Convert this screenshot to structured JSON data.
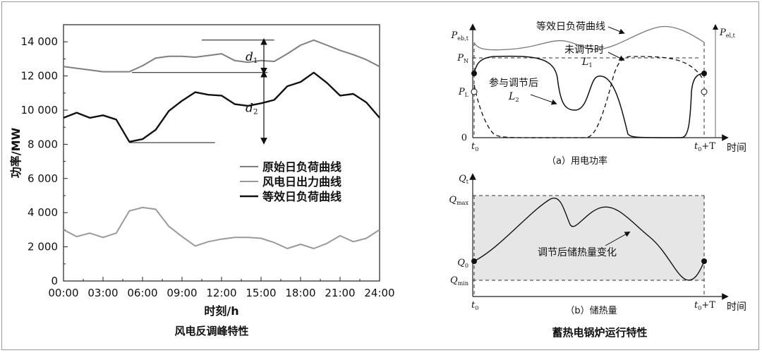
{
  "captions": {
    "left": "风电反调峰特性",
    "right": "蓄热电锅炉运行特性"
  },
  "chart_data": [
    {
      "type": "line",
      "title": "风电反调峰特性",
      "xlabel": "时刻/h",
      "ylabel": "功率/MW",
      "xlim": [
        0,
        24
      ],
      "ylim": [
        0,
        15000
      ],
      "x_ticks": [
        "00:00",
        "03:00",
        "06:00",
        "09:00",
        "12:00",
        "15:00",
        "18:00",
        "21:00",
        "24:00"
      ],
      "y_ticks": [
        "0",
        "2 000",
        "4 000",
        "6 000",
        "8 000",
        "10 000",
        "12 000",
        "14 000"
      ],
      "legend": {
        "position": "center-right",
        "entries": [
          "原始日负荷曲线",
          "风电日出力曲线",
          "等效日负荷曲线"
        ]
      },
      "series": [
        {
          "name": "原始日负荷曲线",
          "color": "#7f7f7f",
          "x": [
            0,
            1,
            2,
            3,
            4,
            5,
            6,
            7,
            8,
            9,
            10,
            11,
            12,
            13,
            14,
            15,
            16,
            17,
            18,
            19,
            20,
            21,
            22,
            23,
            24
          ],
          "y": [
            12550,
            12450,
            12350,
            12250,
            12250,
            12250,
            12600,
            13050,
            13150,
            13150,
            13100,
            13200,
            13300,
            12900,
            12800,
            12900,
            12850,
            13300,
            13800,
            14100,
            13800,
            13500,
            13250,
            12950,
            12550
          ]
        },
        {
          "name": "风电日出力曲线",
          "color": "#9a9a9a",
          "x": [
            0,
            1,
            2,
            3,
            4,
            5,
            6,
            7,
            8,
            9,
            10,
            11,
            12,
            13,
            14,
            15,
            16,
            17,
            18,
            19,
            20,
            21,
            22,
            23,
            24
          ],
          "y": [
            3000,
            2600,
            2800,
            2550,
            2800,
            4100,
            4300,
            4200,
            3200,
            2600,
            2050,
            2300,
            2450,
            2550,
            2550,
            2500,
            2250,
            1900,
            2150,
            1900,
            2200,
            2650,
            2300,
            2500,
            3000
          ]
        },
        {
          "name": "等效日负荷曲线",
          "color": "#111111",
          "x": [
            0,
            1,
            2,
            3,
            4,
            5,
            6,
            7,
            8,
            9,
            10,
            11,
            12,
            13,
            14,
            15,
            16,
            17,
            18,
            19,
            20,
            21,
            22,
            23,
            24
          ],
          "y": [
            9550,
            9850,
            9550,
            9700,
            9450,
            8150,
            8300,
            8850,
            9950,
            10550,
            11050,
            10900,
            10850,
            10350,
            10250,
            10400,
            10600,
            11400,
            11650,
            12200,
            11600,
            10850,
            10950,
            10450,
            9550
          ]
        }
      ],
      "annotations": [
        {
          "label": "d",
          "sub": "1",
          "from": 14100,
          "to": 12200
        },
        {
          "label": "d",
          "sub": "2",
          "from": 12200,
          "to": 8100
        }
      ]
    },
    {
      "type": "line",
      "subtitle": "（a）用电功率",
      "xlabel": "时间",
      "y_ticks": [
        {
          "main": "P",
          "sub": "eb,t"
        },
        {
          "main": "P",
          "sub": "N"
        },
        {
          "main": "P",
          "sub": "L"
        },
        {
          "main": "0",
          "sub": ""
        }
      ],
      "right_axis_label": {
        "main": "P",
        "sub": "el,t"
      },
      "x_ticks": [
        {
          "main": "t",
          "sub": "0",
          "suffix": ""
        },
        {
          "main": "t",
          "sub": "0",
          "suffix": "+T"
        }
      ],
      "annotations": [
        {
          "text": "等效日负荷曲线"
        },
        {
          "text": "未调节时",
          "main": "L",
          "sub": "1"
        },
        {
          "text": "参与调节后",
          "main": "L",
          "sub": "2"
        }
      ],
      "series_styles": [
        {
          "curve": "等效日负荷曲线",
          "color": "#777777",
          "dash": false
        },
        {
          "curve": "L1",
          "color": "#111111",
          "dash": true
        },
        {
          "curve": "L2",
          "color": "#111111",
          "dash": false
        }
      ]
    },
    {
      "type": "area",
      "subtitle": "（b）储热量",
      "xlabel": "时间",
      "y_ticks": [
        {
          "main": "Q",
          "sub": "t"
        },
        {
          "main": "Q",
          "sub": "max"
        },
        {
          "main": "Q",
          "sub": "0"
        },
        {
          "main": "Q",
          "sub": "min"
        }
      ],
      "x_ticks": [
        {
          "main": "t",
          "sub": "0",
          "suffix": ""
        },
        {
          "main": "t",
          "sub": "0",
          "suffix": "+T"
        }
      ],
      "annotation": "调节后储热量变化",
      "band_color": "#e6e6e6"
    }
  ]
}
